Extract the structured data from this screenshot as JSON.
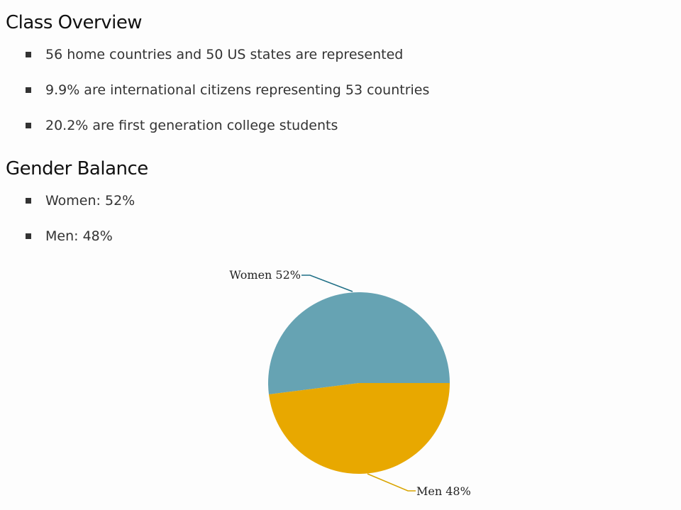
{
  "sections": [
    {
      "title": "Class Overview",
      "items": [
        "56 home countries and 50 US states are represented",
        "9.9% are international citizens representing 53 countries",
        "20.2% are first generation college students"
      ]
    },
    {
      "title": "Gender Balance",
      "items": [
        "Women: 52%",
        "Men: 48%"
      ]
    }
  ],
  "chart_data": {
    "type": "pie",
    "categories": [
      "Women",
      "Men"
    ],
    "values": [
      52,
      48
    ],
    "labels": [
      "Women 52%",
      "Men 48%"
    ],
    "colors": [
      "#66a3b3",
      "#e8a800"
    ],
    "leader_colors": [
      "#1f6f86",
      "#d9a400"
    ]
  }
}
